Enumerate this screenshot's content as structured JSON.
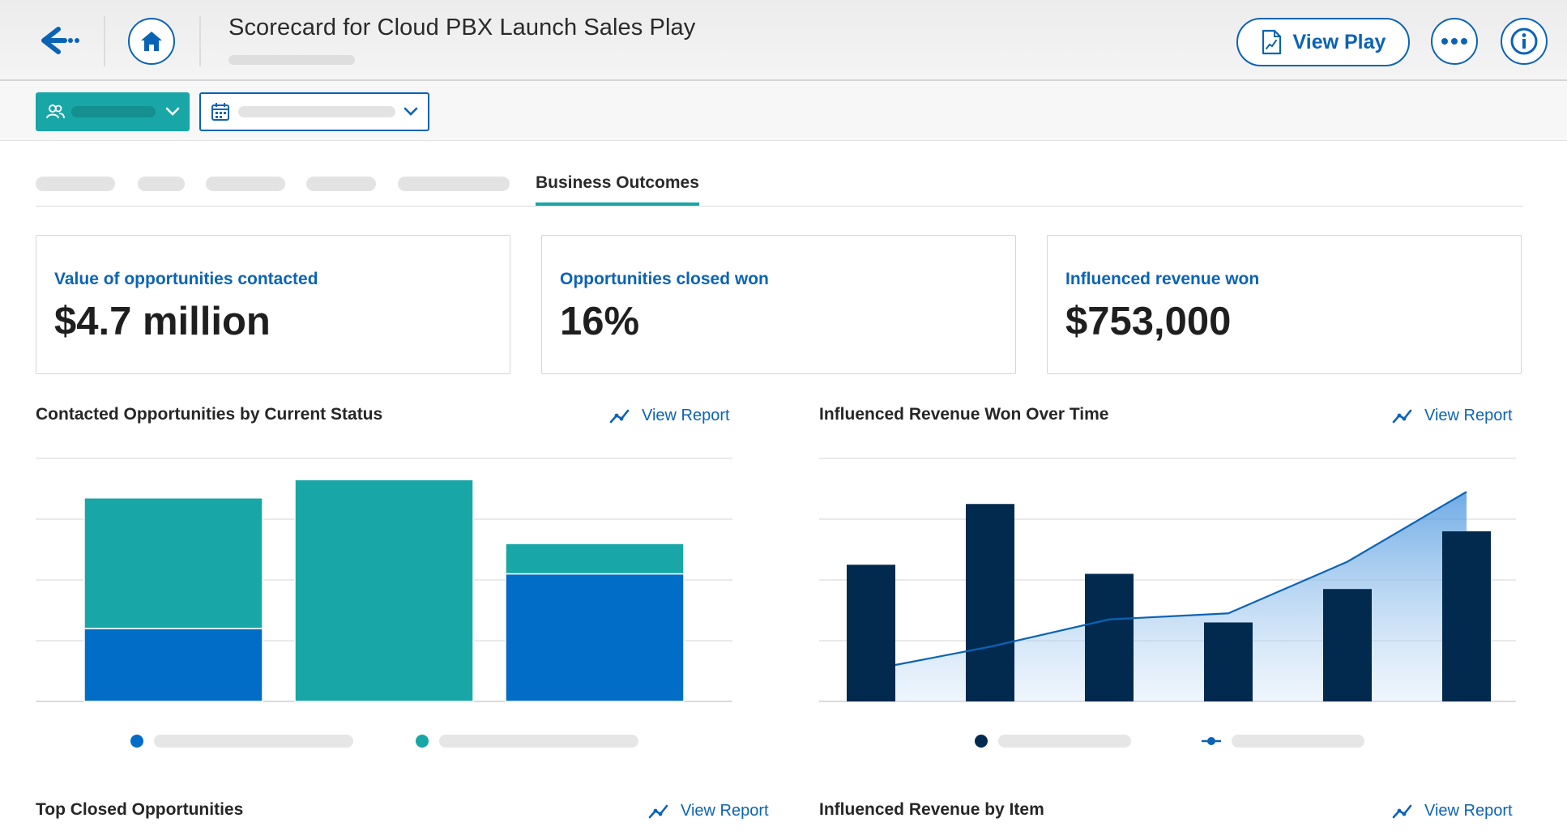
{
  "header": {
    "title": "Scorecard for Cloud PBX Launch Sales Play",
    "view_play_label": "View Play"
  },
  "tabs": {
    "active_label": "Business Outcomes"
  },
  "kpis": [
    {
      "label": "Value of opportunities contacted",
      "value": "$4.7 million"
    },
    {
      "label": "Opportunities closed won",
      "value": "16%"
    },
    {
      "label": "Influenced revenue won",
      "value": "$753,000"
    }
  ],
  "sections": {
    "status_chart_title": "Contacted Opportunities by Current Status",
    "revenue_chart_title": "Influenced Revenue Won Over Time",
    "top_closed_title": "Top Closed Opportunities",
    "by_item_title": "Influenced Revenue by Item",
    "view_report_label": "View Report"
  },
  "colors": {
    "accent": "#0b63b6",
    "teal": "#18a6a6",
    "blue": "#016dc6",
    "navy": "#022a4f"
  },
  "chart_data": [
    {
      "type": "bar",
      "stacked": true,
      "categories": [
        "",
        "",
        ""
      ],
      "ylim": [
        0,
        4
      ],
      "grid": true,
      "series": [
        {
          "color": "#016dc6",
          "values": [
            1.2,
            0,
            2.1
          ]
        },
        {
          "color": "#18a6a6",
          "values": [
            2.15,
            3.65,
            0.5
          ]
        }
      ]
    },
    {
      "type": "bar",
      "combo": "bar+area",
      "categories": [
        "",
        "",
        "",
        "",
        "",
        ""
      ],
      "ylim": [
        0,
        4
      ],
      "grid": true,
      "series": [
        {
          "type": "bar",
          "color": "#022a4f",
          "values": [
            2.25,
            3.25,
            2.1,
            1.3,
            1.85,
            2.8
          ]
        },
        {
          "type": "area",
          "color": "#0b63b6",
          "values": [
            0.6,
            0.9,
            1.35,
            1.45,
            2.3,
            3.45
          ]
        }
      ]
    }
  ]
}
